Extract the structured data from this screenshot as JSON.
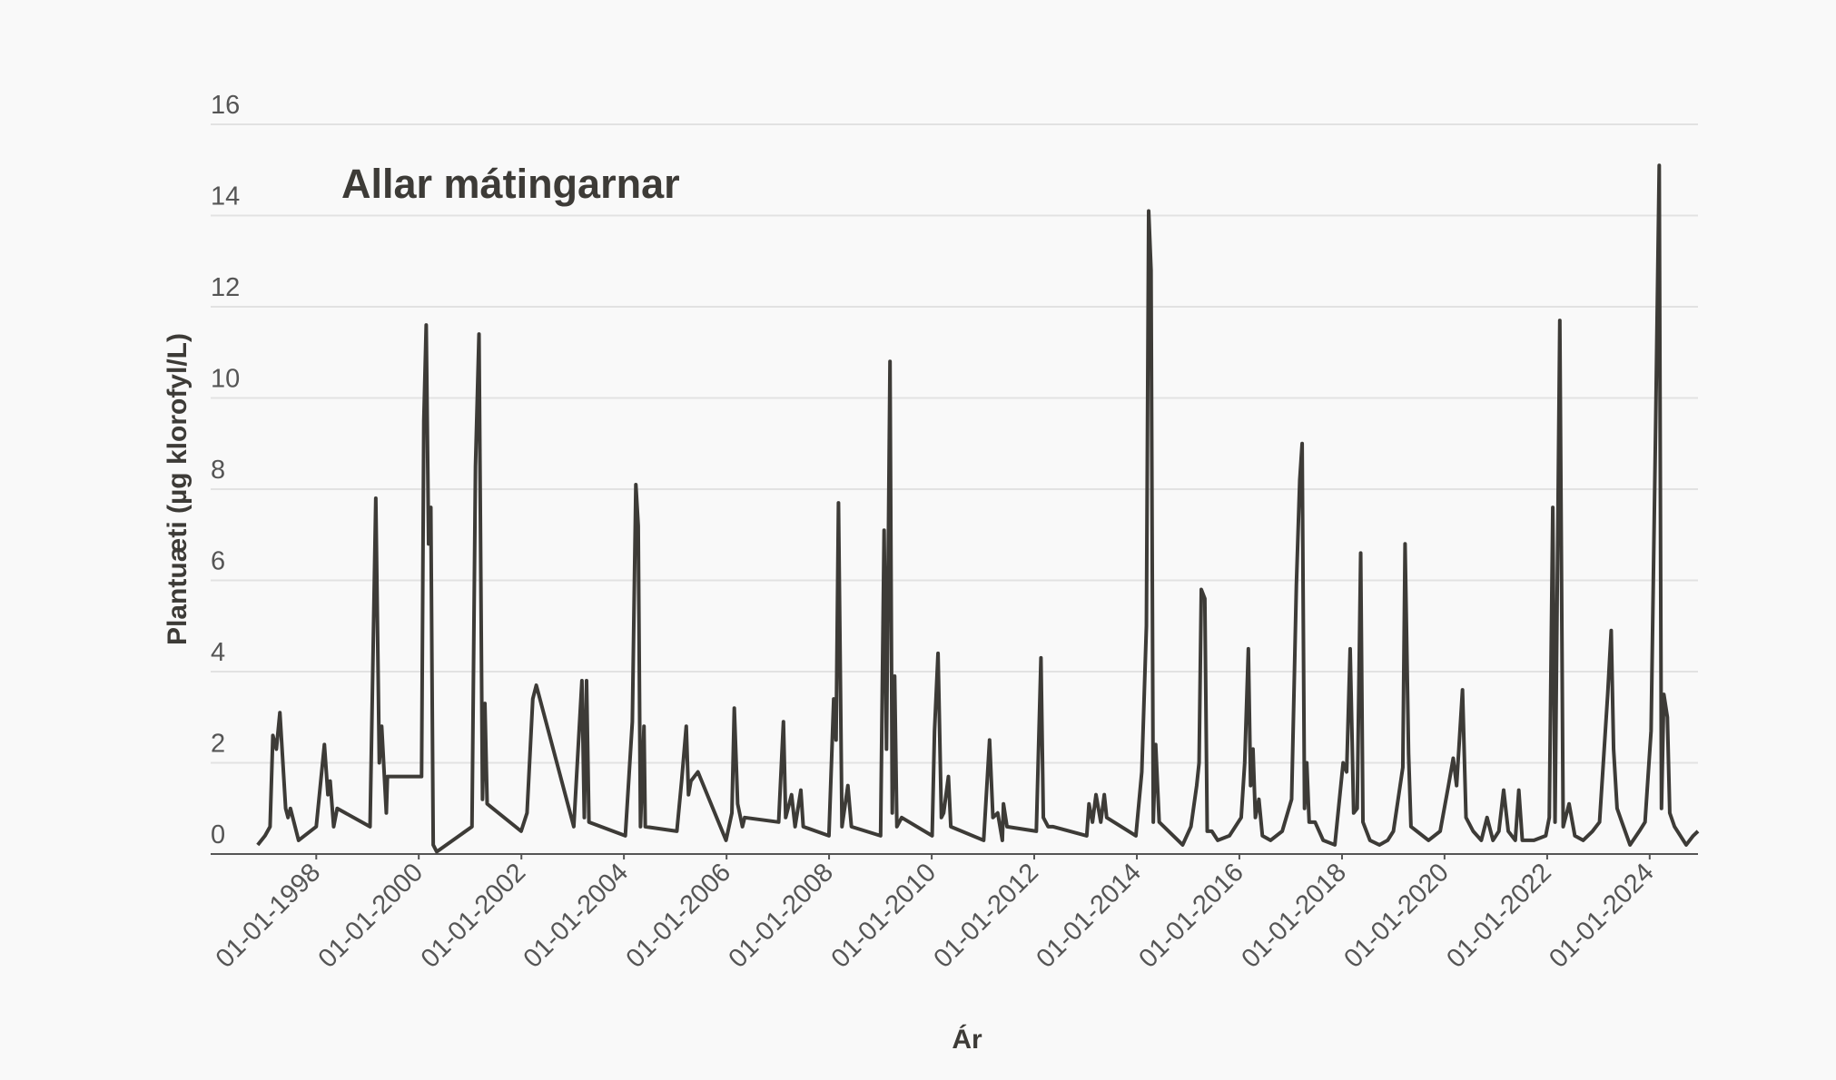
{
  "chart_data": {
    "type": "line",
    "title": "Allar mátingarnar",
    "xlabel": "Ár",
    "ylabel": "Plantuæti (µg klorofyl/L)",
    "color": "#3d3b37",
    "grid": true,
    "xlim": [
      "1995-12-11",
      "2024-12-10"
    ],
    "ylim": [
      0,
      16
    ],
    "yticks": [
      0,
      2,
      4,
      6,
      8,
      10,
      12,
      14,
      16
    ],
    "xticks": [
      {
        "value": "1998-01-01",
        "label": "01-01-1998"
      },
      {
        "value": "2000-01-01",
        "label": "01-01-2000"
      },
      {
        "value": "2002-01-01",
        "label": "01-01-2002"
      },
      {
        "value": "2004-01-01",
        "label": "01-01-2004"
      },
      {
        "value": "2006-01-01",
        "label": "01-01-2006"
      },
      {
        "value": "2008-01-01",
        "label": "01-01-2008"
      },
      {
        "value": "2010-01-01",
        "label": "01-01-2010"
      },
      {
        "value": "2012-01-01",
        "label": "01-01-2012"
      },
      {
        "value": "2014-01-01",
        "label": "01-01-2014"
      },
      {
        "value": "2016-01-01",
        "label": "01-01-2016"
      },
      {
        "value": "2018-01-01",
        "label": "01-01-2018"
      },
      {
        "value": "2020-01-01",
        "label": "01-01-2020"
      },
      {
        "value": "2022-01-01",
        "label": "01-01-2022"
      },
      {
        "value": "2024-01-01",
        "label": "01-01-2024"
      }
    ],
    "x": [
      "1996-11-10",
      "1997-01-01",
      "1997-02-06",
      "1997-02-26",
      "1997-03-23",
      "1997-04-17",
      "1997-05-28",
      "1997-06-14",
      "1997-07-01",
      "1997-08-28",
      "1998-01-01",
      "1998-02-28",
      "1998-03-25",
      "1998-04-10",
      "1998-05-05",
      "1998-05-30",
      "1999-01-19",
      "1999-03-01",
      "1999-03-26",
      "1999-04-12",
      "1999-05-15",
      "1999-05-23",
      "2000-01-21",
      "2000-02-06",
      "2000-02-23",
      "2000-03-11",
      "2000-03-27",
      "2000-04-13",
      "2000-05-08",
      "2001-01-14",
      "2001-02-08",
      "2001-03-05",
      "2001-03-30",
      "2001-04-16",
      "2001-05-02",
      "2001-12-30",
      "2002-02-10",
      "2002-03-23",
      "2002-04-17",
      "2003-01-09",
      "2003-03-08",
      "2003-03-25",
      "2003-04-10",
      "2003-04-27",
      "2004-01-11",
      "2004-03-01",
      "2004-03-26",
      "2004-04-12",
      "2004-04-28",
      "2004-05-23",
      "2004-06-01",
      "2005-01-12",
      "2005-02-15",
      "2005-03-20",
      "2005-04-05",
      "2005-04-22",
      "2005-06-11",
      "2005-12-28",
      "2006-02-08",
      "2006-02-25",
      "2006-03-21",
      "2006-04-24",
      "2006-05-10",
      "2007-01-07",
      "2007-02-10",
      "2007-02-26",
      "2007-04-09",
      "2007-05-04",
      "2007-06-14",
      "2007-07-01",
      "2007-12-31",
      "2008-02-03",
      "2008-02-20",
      "2008-03-08",
      "2008-04-02",
      "2008-05-14",
      "2008-06-08",
      "2009-01-02",
      "2009-01-27",
      "2009-02-13",
      "2009-03-10",
      "2009-03-26",
      "2009-04-12",
      "2009-04-28",
      "2009-06-01",
      "2010-01-04",
      "2010-01-21",
      "2010-02-15",
      "2010-03-11",
      "2010-03-27",
      "2010-04-30",
      "2010-05-17",
      "2011-01-06",
      "2011-02-17",
      "2011-03-13",
      "2011-04-16",
      "2011-05-19",
      "2011-05-27",
      "2011-06-21",
      "2012-01-16",
      "2012-02-18",
      "2012-03-06",
      "2012-04-09",
      "2012-05-12",
      "2013-01-09",
      "2013-01-25",
      "2013-02-19",
      "2013-03-16",
      "2013-04-19",
      "2013-05-14",
      "2013-05-31",
      "2013-12-25",
      "2014-02-05",
      "2014-03-10",
      "2014-03-26",
      "2014-04-12",
      "2014-04-28",
      "2014-05-15",
      "2014-06-09",
      "2014-11-23",
      "2015-01-21",
      "2015-03-03",
      "2015-03-20",
      "2015-04-05",
      "2015-04-30",
      "2015-05-17",
      "2015-06-19",
      "2015-07-31",
      "2015-10-22",
      "2016-01-14",
      "2016-02-08",
      "2016-03-05",
      "2016-03-21",
      "2016-04-07",
      "2016-04-24",
      "2016-05-19",
      "2016-06-13",
      "2016-08-10",
      "2016-11-01",
      "2017-01-07",
      "2017-02-10",
      "2017-03-06",
      "2017-03-23",
      "2017-04-09",
      "2017-04-25",
      "2017-05-12",
      "2017-06-23",
      "2017-08-20",
      "2017-11-11",
      "2018-01-09",
      "2018-02-03",
      "2018-02-28",
      "2018-03-25",
      "2018-04-19",
      "2018-05-14",
      "2018-05-30",
      "2018-07-19",
      "2018-09-24",
      "2018-11-22",
      "2019-01-02",
      "2019-03-10",
      "2019-03-26",
      "2019-04-20",
      "2019-05-07",
      "2019-06-18",
      "2019-09-09",
      "2019-12-01",
      "2020-01-29",
      "2020-03-03",
      "2020-03-27",
      "2020-05-08",
      "2020-06-02",
      "2020-07-23",
      "2020-09-19",
      "2020-10-30",
      "2020-12-11",
      "2021-01-22",
      "2021-02-25",
      "2021-03-30",
      "2021-05-19",
      "2021-06-13",
      "2021-07-08",
      "2021-09-29",
      "2021-12-22",
      "2022-01-16",
      "2022-02-10",
      "2022-02-26",
      "2022-04-01",
      "2022-04-25",
      "2022-06-06",
      "2022-07-17",
      "2022-09-14",
      "2022-11-20",
      "2023-01-09",
      "2023-03-08",
      "2023-04-02",
      "2023-04-19",
      "2023-05-14",
      "2023-06-17",
      "2023-08-14",
      "2023-10-19",
      "2023-11-29",
      "2024-01-11",
      "2024-02-13",
      "2024-03-09",
      "2024-03-25",
      "2024-04-11",
      "2024-05-06",
      "2024-05-23",
      "2024-06-26",
      "2024-09-17",
      "2024-11-06",
      "2024-12-10"
    ],
    "values": [
      0.2,
      0.4,
      0.6,
      2.6,
      2.3,
      3.1,
      1.0,
      0.8,
      1.0,
      0.3,
      0.6,
      2.4,
      1.3,
      1.6,
      0.6,
      1.0,
      0.6,
      7.8,
      2.0,
      2.8,
      0.9,
      1.7,
      1.7,
      9.5,
      11.6,
      6.8,
      7.6,
      0.2,
      0.05,
      0.6,
      8.5,
      11.4,
      1.2,
      3.3,
      1.1,
      0.5,
      0.9,
      3.4,
      3.7,
      0.6,
      3.8,
      0.8,
      3.8,
      0.7,
      0.4,
      2.9,
      8.1,
      7.2,
      0.6,
      2.8,
      0.6,
      0.5,
      1.6,
      2.8,
      1.3,
      1.6,
      1.8,
      0.3,
      0.9,
      3.2,
      1.1,
      0.6,
      0.8,
      0.7,
      2.9,
      0.8,
      1.3,
      0.6,
      1.4,
      0.6,
      0.4,
      3.4,
      2.5,
      7.7,
      0.6,
      1.5,
      0.6,
      0.4,
      7.1,
      2.3,
      10.8,
      0.9,
      3.9,
      0.6,
      0.8,
      0.4,
      2.7,
      4.4,
      0.8,
      0.9,
      1.7,
      0.6,
      0.3,
      2.5,
      0.8,
      0.9,
      0.3,
      1.1,
      0.6,
      0.5,
      4.3,
      0.8,
      0.6,
      0.6,
      0.4,
      1.1,
      0.7,
      1.3,
      0.7,
      1.3,
      0.8,
      0.4,
      1.8,
      5.0,
      14.1,
      12.8,
      0.7,
      2.4,
      0.7,
      0.2,
      0.6,
      1.5,
      2.0,
      5.8,
      5.6,
      0.5,
      0.5,
      0.3,
      0.4,
      0.8,
      2.0,
      4.5,
      1.5,
      2.3,
      0.8,
      1.2,
      0.4,
      0.3,
      0.5,
      1.2,
      5.9,
      8.2,
      9.0,
      1.0,
      2.0,
      0.7,
      0.7,
      0.3,
      0.2,
      2.0,
      1.8,
      4.5,
      0.9,
      1.0,
      6.6,
      0.7,
      0.3,
      0.2,
      0.3,
      0.5,
      1.9,
      6.8,
      2.2,
      0.6,
      0.5,
      0.3,
      0.5,
      1.5,
      2.1,
      1.5,
      3.6,
      0.8,
      0.5,
      0.3,
      0.8,
      0.3,
      0.5,
      1.4,
      0.5,
      0.3,
      1.4,
      0.3,
      0.3,
      0.4,
      0.8,
      7.6,
      0.7,
      11.7,
      0.6,
      1.1,
      0.4,
      0.3,
      0.5,
      0.7,
      3.5,
      4.9,
      2.3,
      1.0,
      0.7,
      0.2,
      0.5,
      0.7,
      2.7,
      9.5,
      15.1,
      1.0,
      3.5,
      3.0,
      0.9,
      0.6,
      0.2,
      0.4,
      0.5
    ]
  }
}
